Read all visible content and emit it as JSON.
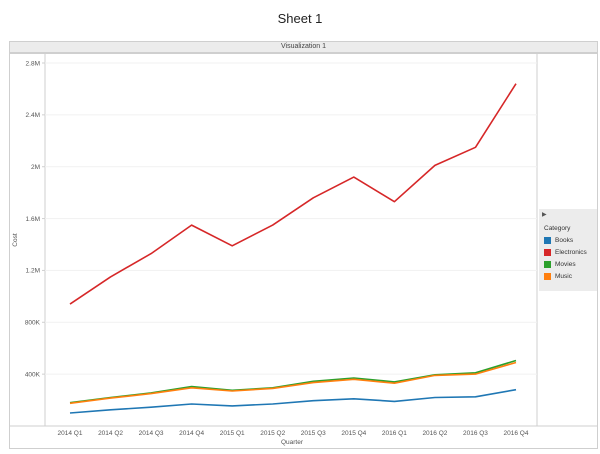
{
  "sheet_title": "Sheet 1",
  "viz_header": "Visualization 1",
  "legend": {
    "title": "Category",
    "items": [
      {
        "label": "Books",
        "color": "#1f77b4"
      },
      {
        "label": "Electronics",
        "color": "#d62728"
      },
      {
        "label": "Movies",
        "color": "#2ca02c"
      },
      {
        "label": "Music",
        "color": "#ff7f0e"
      }
    ]
  },
  "chart_data": {
    "type": "line",
    "xlabel": "Quarter",
    "ylabel": "Cost",
    "categories": [
      "2014 Q1",
      "2014 Q2",
      "2014 Q3",
      "2014 Q4",
      "2015 Q1",
      "2015 Q2",
      "2015 Q3",
      "2015 Q4",
      "2016 Q1",
      "2016 Q2",
      "2016 Q3",
      "2016 Q4"
    ],
    "yticks": [
      400000,
      800000,
      1200000,
      1600000,
      2000000,
      2400000,
      2800000
    ],
    "ytick_labels": [
      "400K",
      "800K",
      "1.2M",
      "1.6M",
      "2M",
      "2.4M",
      "2.8M"
    ],
    "ylim": [
      0,
      2850000
    ],
    "grid": true,
    "legend_position": "right",
    "series": [
      {
        "name": "Books",
        "color": "#1f77b4",
        "values": [
          100000,
          125000,
          145000,
          170000,
          155000,
          170000,
          195000,
          210000,
          190000,
          220000,
          225000,
          280000
        ]
      },
      {
        "name": "Electronics",
        "color": "#d62728",
        "values": [
          940000,
          1150000,
          1330000,
          1550000,
          1390000,
          1550000,
          1760000,
          1920000,
          1730000,
          2010000,
          2150000,
          2640000
        ]
      },
      {
        "name": "Movies",
        "color": "#2ca02c",
        "values": [
          180000,
          220000,
          255000,
          305000,
          275000,
          295000,
          345000,
          370000,
          340000,
          395000,
          410000,
          505000
        ]
      },
      {
        "name": "Music",
        "color": "#ff7f0e",
        "values": [
          175000,
          215000,
          250000,
          295000,
          270000,
          290000,
          335000,
          360000,
          330000,
          390000,
          400000,
          490000
        ]
      }
    ]
  }
}
